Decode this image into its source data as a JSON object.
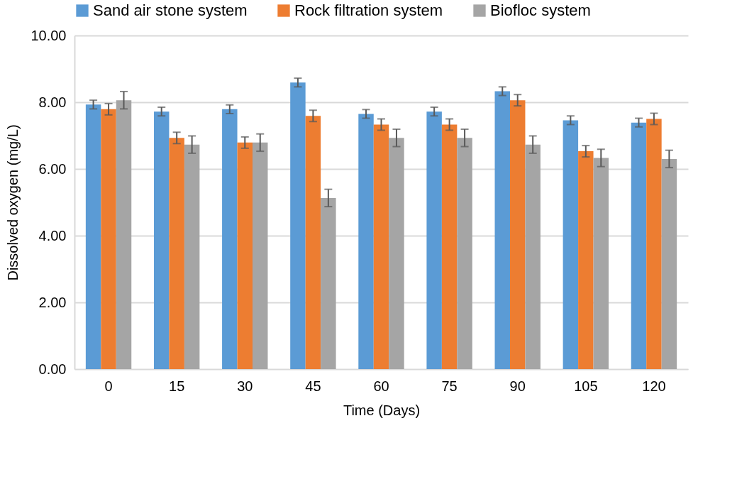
{
  "chart_data": {
    "type": "bar",
    "xlabel": "Time (Days)",
    "ylabel": "Dissolved oxygen (mg/L)",
    "categories": [
      "0",
      "15",
      "30",
      "45",
      "60",
      "75",
      "90",
      "105",
      "120"
    ],
    "series": [
      {
        "name": "Sand air stone system",
        "color": "#5b9bd5",
        "values": [
          7.93,
          7.72,
          7.79,
          8.59,
          7.65,
          7.72,
          8.33,
          7.46,
          7.39
        ],
        "errors": [
          0.13,
          0.13,
          0.13,
          0.13,
          0.13,
          0.13,
          0.13,
          0.13,
          0.13
        ]
      },
      {
        "name": "Rock filtration system",
        "color": "#ed7d31",
        "values": [
          7.79,
          6.93,
          6.79,
          7.59,
          7.33,
          7.33,
          8.06,
          6.53,
          7.5
        ],
        "errors": [
          0.17,
          0.17,
          0.17,
          0.17,
          0.17,
          0.17,
          0.17,
          0.17,
          0.17
        ]
      },
      {
        "name": "Biofloc system",
        "color": "#a5a5a5",
        "values": [
          8.06,
          6.73,
          6.79,
          5.13,
          6.93,
          6.93,
          6.73,
          6.33,
          6.3
        ],
        "errors": [
          0.26,
          0.26,
          0.26,
          0.26,
          0.26,
          0.26,
          0.26,
          0.26,
          0.26
        ]
      }
    ],
    "ylim": [
      0,
      10
    ],
    "yticks": [
      {
        "value": 0,
        "label": "0.00"
      },
      {
        "value": 2,
        "label": "2.00"
      },
      {
        "value": 4,
        "label": "4.00"
      },
      {
        "value": 6,
        "label": "6.00"
      },
      {
        "value": 8,
        "label": "8.00"
      },
      {
        "value": 10,
        "label": "10.00"
      }
    ],
    "grid": "y",
    "legend": "top"
  }
}
